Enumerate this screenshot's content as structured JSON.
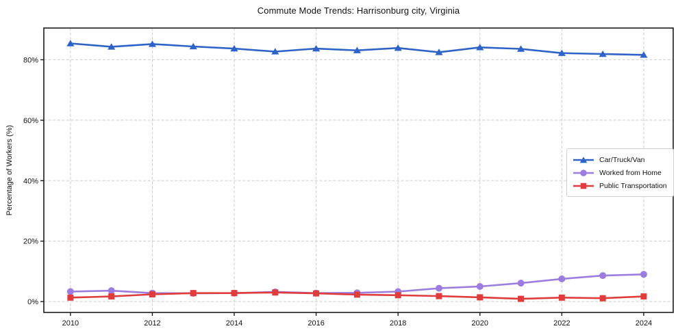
{
  "chart_data": {
    "type": "line",
    "title": "Commute Mode Trends: Harrisonburg city, Virginia",
    "xlabel": "",
    "ylabel": "Percentage of Workers (%)",
    "x": [
      2010,
      2011,
      2012,
      2013,
      2014,
      2015,
      2016,
      2017,
      2018,
      2019,
      2020,
      2021,
      2022,
      2023,
      2024
    ],
    "xticks": [
      2010,
      2012,
      2014,
      2016,
      2018,
      2020,
      2022,
      2024
    ],
    "xtick_labels": [
      "2010",
      "2012",
      "2014",
      "2016",
      "2018",
      "2020",
      "2022",
      "2024"
    ],
    "yticks": [
      0,
      20,
      40,
      60,
      80
    ],
    "ytick_labels": [
      "0%",
      "20%",
      "40%",
      "60%",
      "80%"
    ],
    "xlim": [
      2009.35,
      2024.72
    ],
    "ylim": [
      -3.6,
      90.5
    ],
    "grid": true,
    "grid_color": "#cccccc",
    "legend_position": "center-right",
    "series": [
      {
        "name": "Car/Truck/Van",
        "color": "#2e64c8",
        "marker": "triangle-up",
        "values": [
          85.4,
          84.3,
          85.2,
          84.4,
          83.7,
          82.7,
          83.7,
          83.1,
          83.9,
          82.5,
          84.1,
          83.6,
          82.2,
          81.9,
          81.6
        ]
      },
      {
        "name": "Worked from Home",
        "color": "#9d7ce0",
        "marker": "circle",
        "values": [
          3.3,
          3.6,
          2.8,
          2.7,
          2.8,
          3.2,
          2.8,
          2.9,
          3.3,
          4.4,
          5.0,
          6.1,
          7.5,
          8.6,
          9.0
        ]
      },
      {
        "name": "Public Transportation",
        "color": "#e03c3c",
        "marker": "square",
        "values": [
          1.3,
          1.7,
          2.4,
          2.8,
          2.8,
          3.0,
          2.7,
          2.3,
          2.1,
          1.8,
          1.4,
          0.9,
          1.3,
          1.1,
          1.7
        ]
      }
    ]
  }
}
